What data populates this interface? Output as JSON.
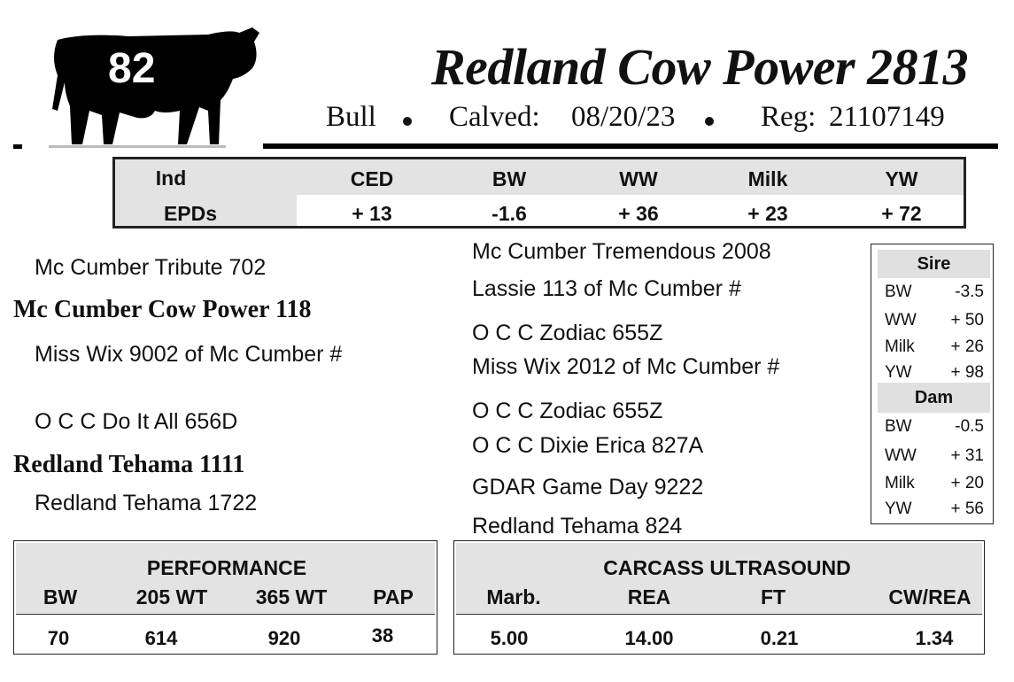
{
  "lot_number": "82",
  "animal_name": "Redland Cow Power 2813",
  "sex": "Bull",
  "calved_label": "Calved:",
  "calved_date": "08/20/23",
  "reg_label": "Reg:",
  "reg_number": "21107149",
  "epd_table": {
    "row_label_1": "Ind",
    "row_label_2": "EPDs",
    "headers": [
      "CED",
      "BW",
      "WW",
      "Milk",
      "YW"
    ],
    "values": [
      "+ 13",
      "-1.6",
      "+ 36",
      "+ 23",
      "+ 72"
    ]
  },
  "pedigree": {
    "sire_sire": "Mc Cumber Tribute 702",
    "sire": "Mc Cumber Cow Power 118",
    "sire_dam": "Miss Wix 9002 of Mc Cumber #",
    "dam_sire": "O C C Do It All 656D",
    "dam": "Redland Tehama 1111",
    "dam_dam": "Redland Tehama 1722",
    "third_gen": [
      "Mc Cumber Tremendous 2008",
      "Lassie 113 of Mc Cumber #",
      "O C C Zodiac 655Z",
      "Miss Wix 2012 of Mc Cumber #",
      "O C C Zodiac 655Z",
      "O C C Dixie Erica 827A",
      "GDAR Game Day 9222",
      "Redland Tehama 824"
    ]
  },
  "parent_epds": {
    "sire_title": "Sire",
    "sire": [
      {
        "label": "BW",
        "value": "-3.5"
      },
      {
        "label": "WW",
        "value": "+ 50"
      },
      {
        "label": "Milk",
        "value": "+ 26"
      },
      {
        "label": "YW",
        "value": "+ 98"
      }
    ],
    "dam_title": "Dam",
    "dam": [
      {
        "label": "BW",
        "value": "-0.5"
      },
      {
        "label": "WW",
        "value": "+ 31"
      },
      {
        "label": "Milk",
        "value": "+ 20"
      },
      {
        "label": "YW",
        "value": "+ 56"
      }
    ]
  },
  "performance": {
    "title": "PERFORMANCE",
    "headers": [
      "BW",
      "205 WT",
      "365 WT",
      "PAP"
    ],
    "values": [
      "70",
      "614",
      "920",
      "38"
    ]
  },
  "carcass": {
    "title": "CARCASS ULTRASOUND",
    "headers": [
      "Marb.",
      "REA",
      "FT",
      "CW/REA"
    ],
    "values": [
      "5.00",
      "14.00",
      "0.21",
      "1.34"
    ]
  }
}
